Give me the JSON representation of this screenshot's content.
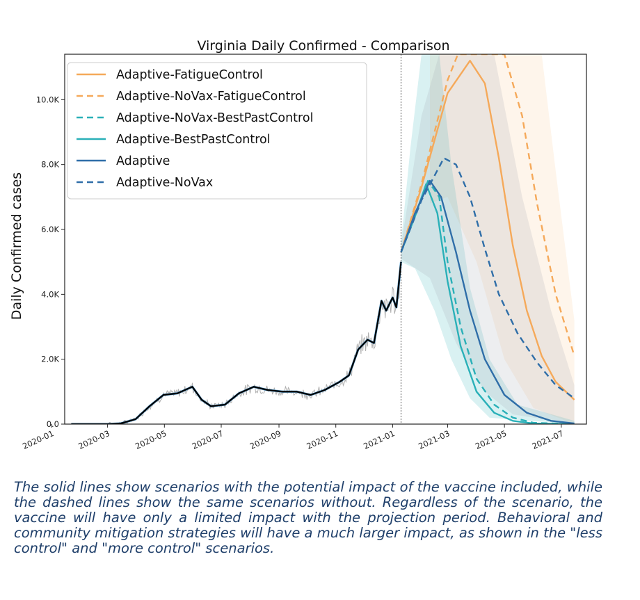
{
  "chart_data": {
    "type": "line",
    "title": "Virginia Daily Confirmed - Comparison",
    "xlabel": "",
    "ylabel": "Daily Confirmed cases",
    "x_range": [
      "2020-01-15",
      "2021-07-28"
    ],
    "ylim": [
      0,
      11400
    ],
    "x_ticks": [
      "2020-01",
      "2020-03",
      "2020-05",
      "2020-07",
      "2020-09",
      "2020-11",
      "2021-01",
      "2021-03",
      "2021-05",
      "2021-07"
    ],
    "y_ticks": [
      {
        "value": 0,
        "label": "0.0"
      },
      {
        "value": 2000,
        "label": "2.0K"
      },
      {
        "value": 4000,
        "label": "4.0K"
      },
      {
        "value": 6000,
        "label": "6.0K"
      },
      {
        "value": 8000,
        "label": "8.0K"
      },
      {
        "value": 10000,
        "label": "10.0K"
      }
    ],
    "projection_start": "2021-01-10",
    "legend_position": "top-left",
    "grid": false,
    "observed": {
      "color": "#000000",
      "raw_color": "#b0b0b0",
      "smoothed_points": [
        [
          "2020-01-22",
          0
        ],
        [
          "2020-03-01",
          0
        ],
        [
          "2020-03-15",
          20
        ],
        [
          "2020-03-31",
          150
        ],
        [
          "2020-04-15",
          550
        ],
        [
          "2020-04-30",
          900
        ],
        [
          "2020-05-15",
          950
        ],
        [
          "2020-05-31",
          1150
        ],
        [
          "2020-06-10",
          750
        ],
        [
          "2020-06-20",
          550
        ],
        [
          "2020-07-05",
          600
        ],
        [
          "2020-07-20",
          950
        ],
        [
          "2020-08-05",
          1150
        ],
        [
          "2020-08-20",
          1050
        ],
        [
          "2020-09-05",
          1000
        ],
        [
          "2020-09-20",
          1000
        ],
        [
          "2020-10-05",
          900
        ],
        [
          "2020-10-20",
          1050
        ],
        [
          "2020-11-05",
          1300
        ],
        [
          "2020-11-15",
          1500
        ],
        [
          "2020-11-25",
          2300
        ],
        [
          "2020-12-05",
          2600
        ],
        [
          "2020-12-12",
          2500
        ],
        [
          "2020-12-20",
          3800
        ],
        [
          "2020-12-25",
          3500
        ],
        [
          "2021-01-01",
          3900
        ],
        [
          "2021-01-05",
          3600
        ],
        [
          "2021-01-10",
          5000
        ]
      ]
    },
    "series": [
      {
        "name": "Adaptive-FatigueControl",
        "color": "#f5a95a",
        "dash": false,
        "points": [
          [
            "2021-01-10",
            5300
          ],
          [
            "2021-02-01",
            7300
          ],
          [
            "2021-03-01",
            10200
          ],
          [
            "2021-03-25",
            11200
          ],
          [
            "2021-04-10",
            10500
          ],
          [
            "2021-04-25",
            8200
          ],
          [
            "2021-05-10",
            5500
          ],
          [
            "2021-05-25",
            3500
          ],
          [
            "2021-06-10",
            2100
          ],
          [
            "2021-06-25",
            1300
          ],
          [
            "2021-07-15",
            750
          ]
        ],
        "band": {
          "color": "#f5a95a",
          "opacity": 0.12,
          "upper": [
            [
              "2021-02-10",
              11400
            ],
            [
              "2021-06-10",
              11400
            ],
            [
              "2021-06-25",
              7800
            ],
            [
              "2021-07-15",
              3200
            ]
          ],
          "lower": [
            [
              "2021-02-10",
              6800
            ],
            [
              "2021-03-01",
              7000
            ],
            [
              "2021-04-01",
              5000
            ],
            [
              "2021-05-01",
              2000
            ],
            [
              "2021-06-01",
              500
            ],
            [
              "2021-07-15",
              0
            ]
          ]
        }
      },
      {
        "name": "Adaptive-NoVax-FatigueControl",
        "color": "#f5a95a",
        "dash": true,
        "points": [
          [
            "2021-01-10",
            5300
          ],
          [
            "2021-02-01",
            7400
          ],
          [
            "2021-03-01",
            10600
          ],
          [
            "2021-03-12",
            11400
          ],
          [
            "2021-05-01",
            11400
          ],
          [
            "2021-05-20",
            9500
          ],
          [
            "2021-06-05",
            6800
          ],
          [
            "2021-06-25",
            4000
          ],
          [
            "2021-07-15",
            2100
          ]
        ]
      },
      {
        "name": "Adaptive-NoVax-BestPastControl",
        "color": "#2ab0b8",
        "dash": true,
        "points": [
          [
            "2021-01-10",
            5300
          ],
          [
            "2021-01-25",
            6400
          ],
          [
            "2021-02-08",
            7500
          ],
          [
            "2021-02-20",
            7000
          ],
          [
            "2021-03-01",
            5000
          ],
          [
            "2021-03-15",
            3000
          ],
          [
            "2021-04-01",
            1400
          ],
          [
            "2021-04-20",
            600
          ],
          [
            "2021-05-10",
            200
          ],
          [
            "2021-06-01",
            40
          ],
          [
            "2021-07-15",
            0
          ]
        ]
      },
      {
        "name": "Adaptive-BestPastControl",
        "color": "#2ab0b8",
        "dash": false,
        "points": [
          [
            "2021-01-10",
            5300
          ],
          [
            "2021-01-25",
            6400
          ],
          [
            "2021-02-06",
            7400
          ],
          [
            "2021-02-18",
            6500
          ],
          [
            "2021-03-01",
            4400
          ],
          [
            "2021-03-15",
            2400
          ],
          [
            "2021-04-01",
            1000
          ],
          [
            "2021-04-20",
            350
          ],
          [
            "2021-05-10",
            100
          ],
          [
            "2021-06-01",
            20
          ],
          [
            "2021-07-15",
            0
          ]
        ],
        "band": {
          "color": "#2ab0b8",
          "opacity": 0.18,
          "upper": [
            [
              "2021-01-10",
              5600
            ],
            [
              "2021-01-20",
              8500
            ],
            [
              "2021-02-01",
              11400
            ],
            [
              "2021-02-20",
              11400
            ],
            [
              "2021-03-05",
              8000
            ],
            [
              "2021-03-25",
              4200
            ],
            [
              "2021-04-15",
              2000
            ],
            [
              "2021-05-15",
              600
            ],
            [
              "2021-07-15",
              100
            ]
          ],
          "lower": [
            [
              "2021-01-10",
              5000
            ],
            [
              "2021-01-25",
              4800
            ],
            [
              "2021-02-15",
              3500
            ],
            [
              "2021-03-05",
              2000
            ],
            [
              "2021-03-25",
              800
            ],
            [
              "2021-04-15",
              200
            ],
            [
              "2021-07-15",
              0
            ]
          ]
        }
      },
      {
        "name": "Adaptive",
        "color": "#2f6ea8",
        "dash": false,
        "points": [
          [
            "2021-01-10",
            5300
          ],
          [
            "2021-01-25",
            6500
          ],
          [
            "2021-02-10",
            7500
          ],
          [
            "2021-02-22",
            7000
          ],
          [
            "2021-03-10",
            5300
          ],
          [
            "2021-03-25",
            3500
          ],
          [
            "2021-04-10",
            2000
          ],
          [
            "2021-05-01",
            900
          ],
          [
            "2021-05-25",
            350
          ],
          [
            "2021-06-20",
            100
          ],
          [
            "2021-07-15",
            20
          ]
        ],
        "band": {
          "color": "#9aa3ab",
          "opacity": 0.18,
          "upper": [
            [
              "2021-01-10",
              5500
            ],
            [
              "2021-02-01",
              9500
            ],
            [
              "2021-02-20",
              11400
            ],
            [
              "2021-04-20",
              11400
            ],
            [
              "2021-05-20",
              7000
            ],
            [
              "2021-06-20",
              3500
            ],
            [
              "2021-07-15",
              1200
            ]
          ],
          "lower": [
            [
              "2021-01-10",
              5100
            ],
            [
              "2021-02-10",
              4500
            ],
            [
              "2021-03-10",
              2500
            ],
            [
              "2021-04-10",
              1000
            ],
            [
              "2021-05-10",
              300
            ],
            [
              "2021-07-15",
              0
            ]
          ]
        }
      },
      {
        "name": "Adaptive-NoVax",
        "color": "#2f6ea8",
        "dash": true,
        "points": [
          [
            "2021-01-10",
            5300
          ],
          [
            "2021-02-01",
            6900
          ],
          [
            "2021-02-25",
            8200
          ],
          [
            "2021-03-10",
            8000
          ],
          [
            "2021-03-25",
            7000
          ],
          [
            "2021-04-10",
            5400
          ],
          [
            "2021-04-25",
            4000
          ],
          [
            "2021-05-15",
            2800
          ],
          [
            "2021-06-05",
            1900
          ],
          [
            "2021-06-25",
            1200
          ],
          [
            "2021-07-15",
            800
          ]
        ]
      }
    ]
  },
  "caption": "The solid lines show scenarios with the potential impact of the vaccine included, while the dashed lines show the same scenarios without. Regardless of the scenario, the vaccine will have only a limited impact with the projection period. Behavioral and community mitigation strategies will have a much larger impact, as shown in the \"less control\" and \"more control\" scenarios."
}
